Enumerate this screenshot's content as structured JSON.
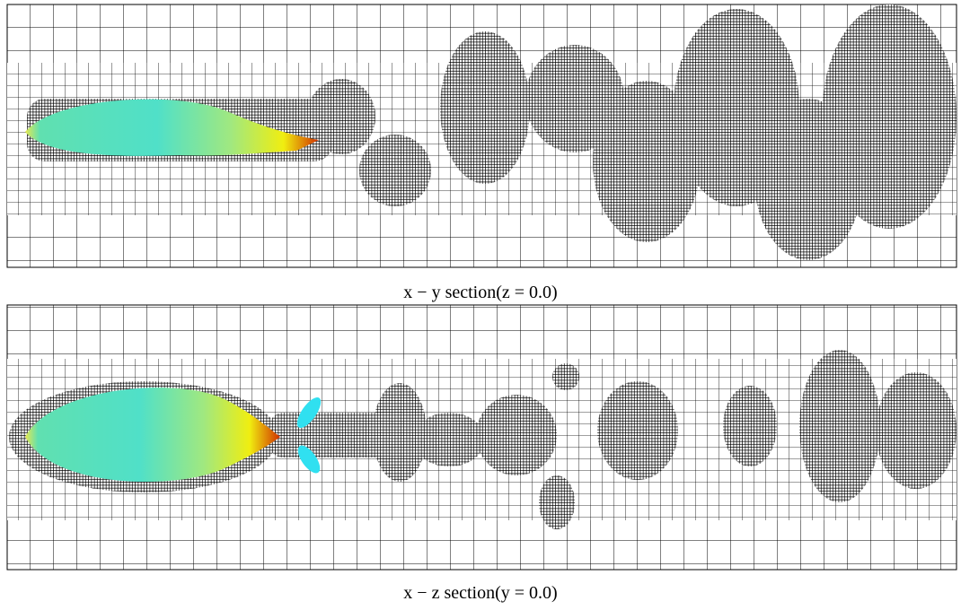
{
  "panels": [
    {
      "caption": "x − y section(z = 0.0)"
    },
    {
      "caption": "x − z section(y = 0.0)"
    }
  ]
}
